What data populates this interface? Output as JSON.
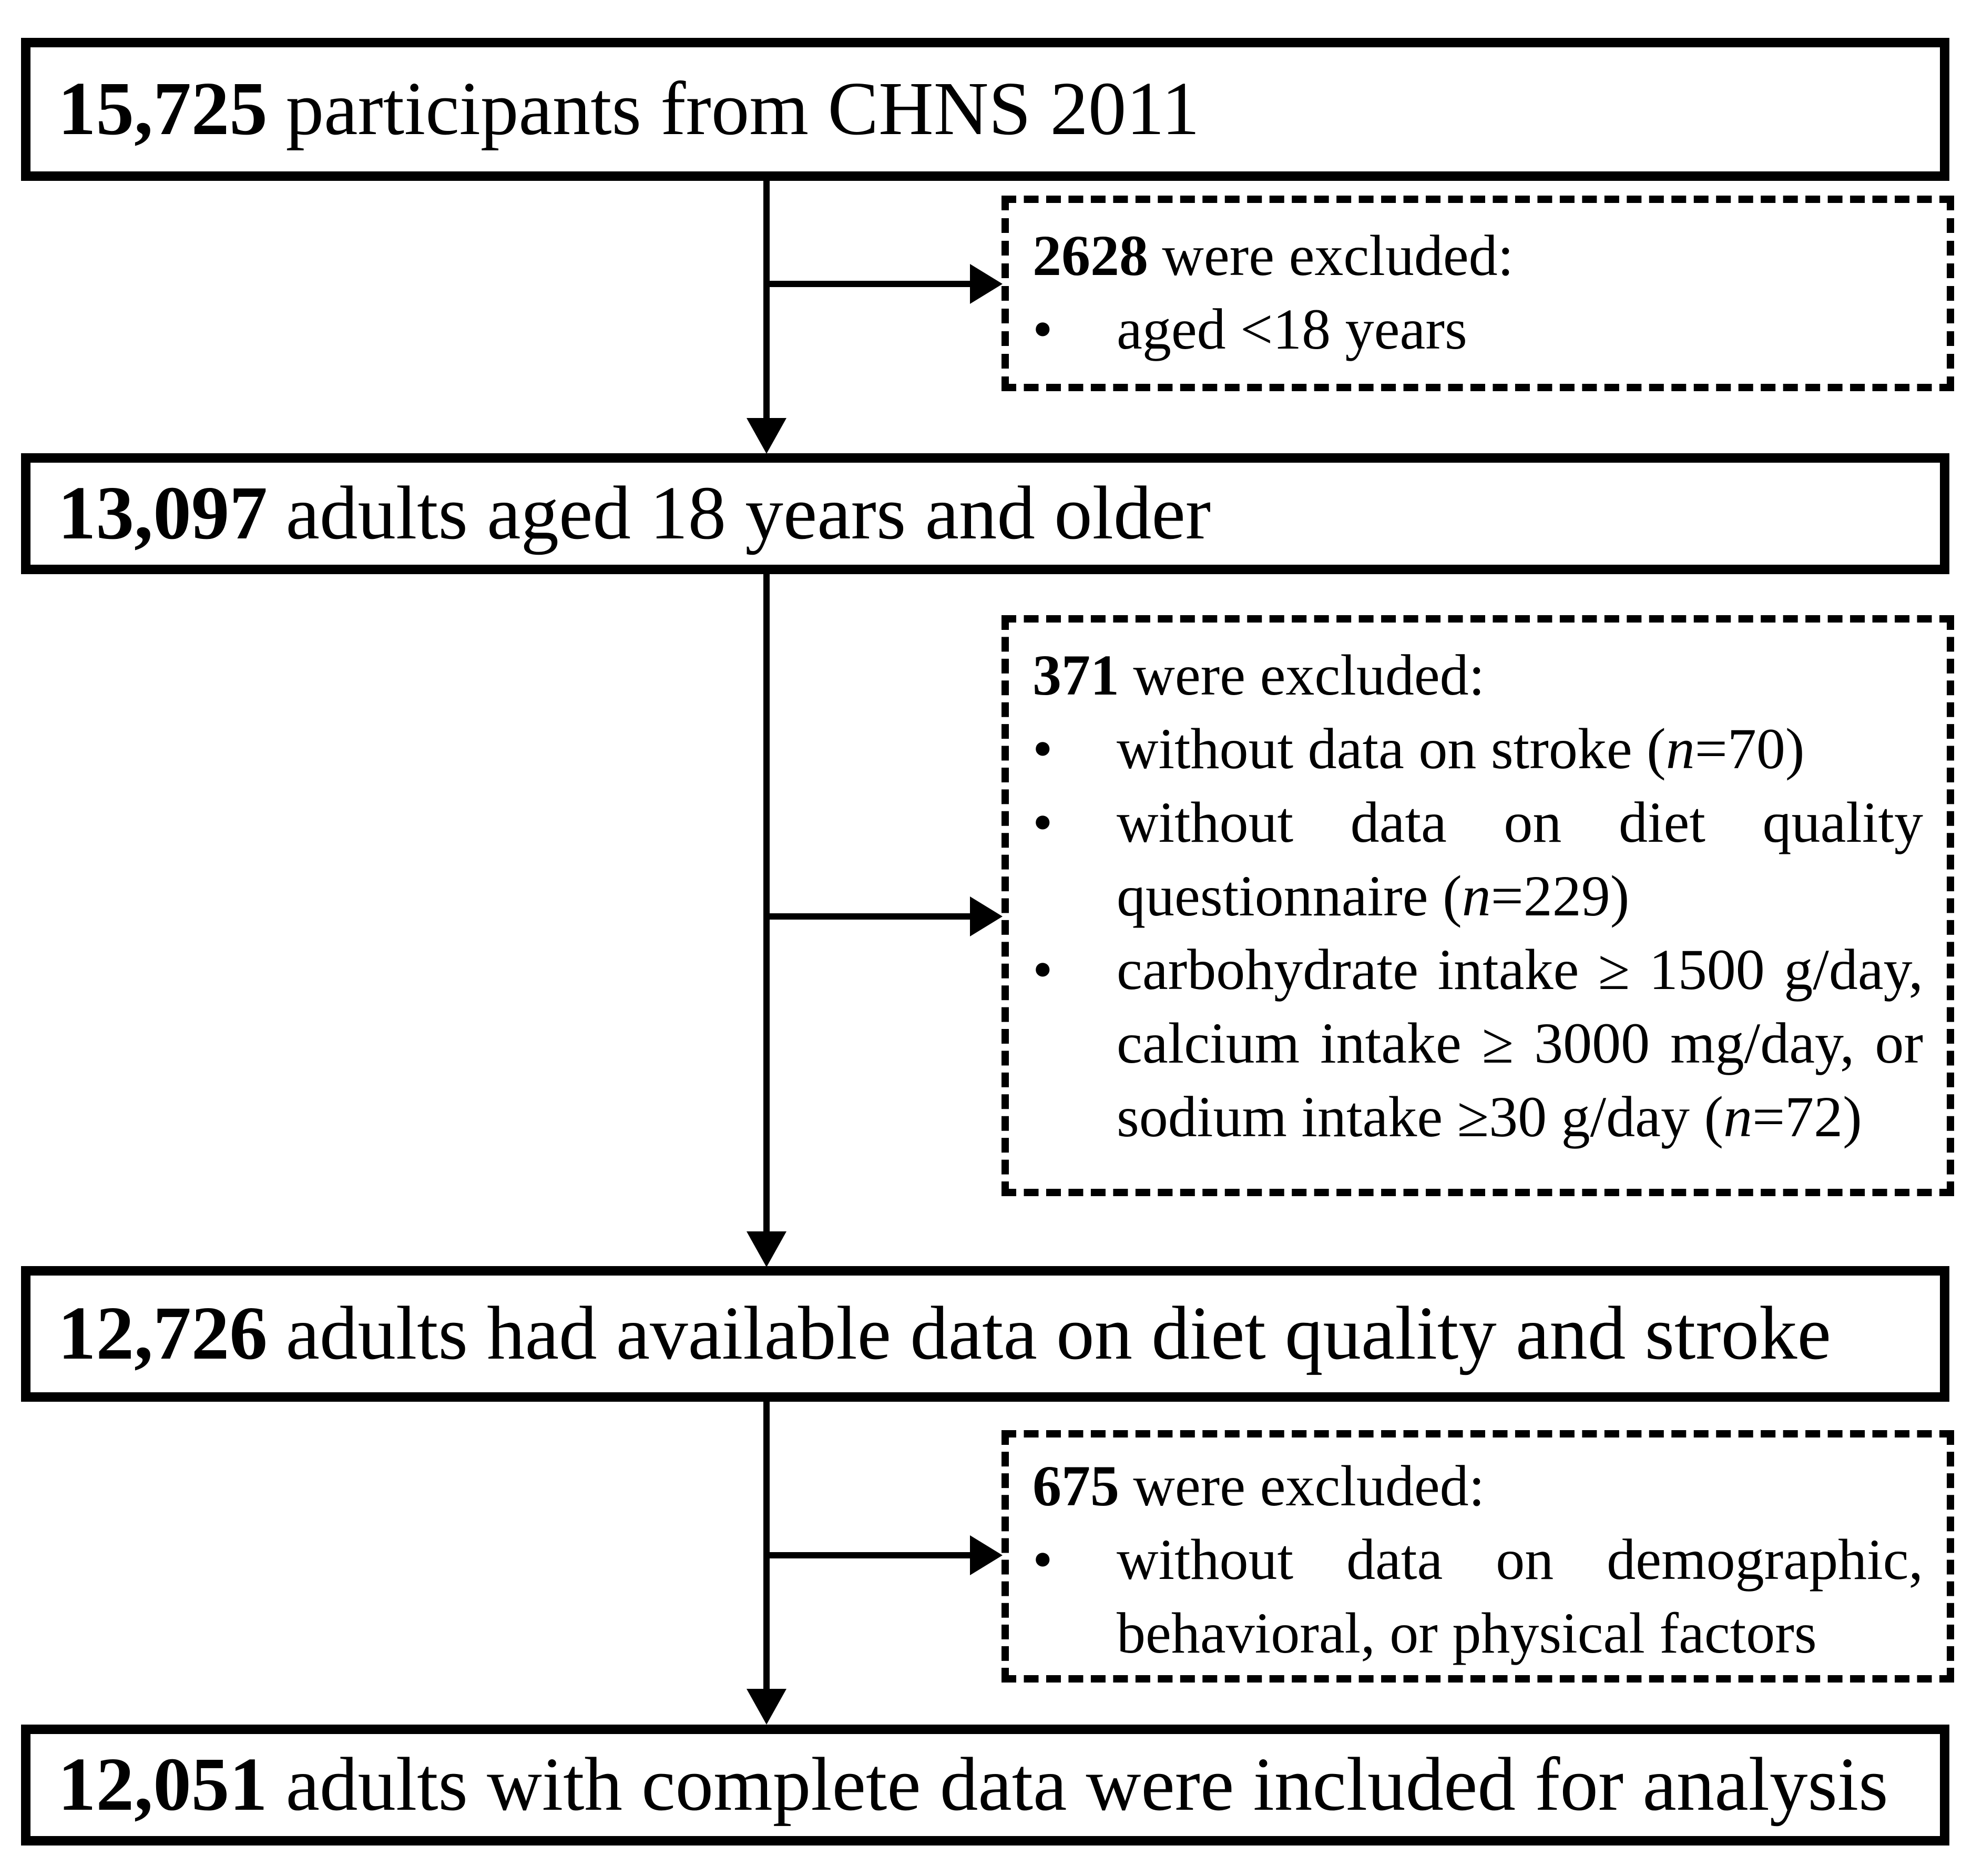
{
  "diagram": {
    "bullet_glyph": "•",
    "boxes": [
      {
        "count": "15,725",
        "label": "participants from CHNS 2011"
      },
      {
        "count": "13,097",
        "label": "adults aged 18 years and older"
      },
      {
        "count": "12,726",
        "label": "adults had available data on diet quality and stroke"
      },
      {
        "count": "12,051",
        "label": "adults with complete data were included for analysis"
      }
    ],
    "exclusions": [
      {
        "count": "2628",
        "title": "were excluded:",
        "items": [
          {
            "text": "aged <18 years",
            "n_open": "",
            "n_var": "",
            "n_rest": ""
          }
        ]
      },
      {
        "count": "371",
        "title": "were excluded:",
        "items": [
          {
            "text": "without data on stroke ",
            "n_open": "(",
            "n_var": "n",
            "n_rest": "=70)"
          },
          {
            "text": "without data on diet quality questionnaire ",
            "n_open": "(",
            "n_var": "n",
            "n_rest": "=229)"
          },
          {
            "text": "carbohydrate intake ≥ 1500 g/day, calcium intake ≥ 3000 mg/day, or sodium intake ≥30 g/day ",
            "n_open": "(",
            "n_var": "n",
            "n_rest": "=72)"
          }
        ]
      },
      {
        "count": "675",
        "title": "were excluded:",
        "items": [
          {
            "text": "without data on demographic, behavioral, or physical factors",
            "n_open": "",
            "n_var": "",
            "n_rest": ""
          }
        ]
      }
    ]
  }
}
